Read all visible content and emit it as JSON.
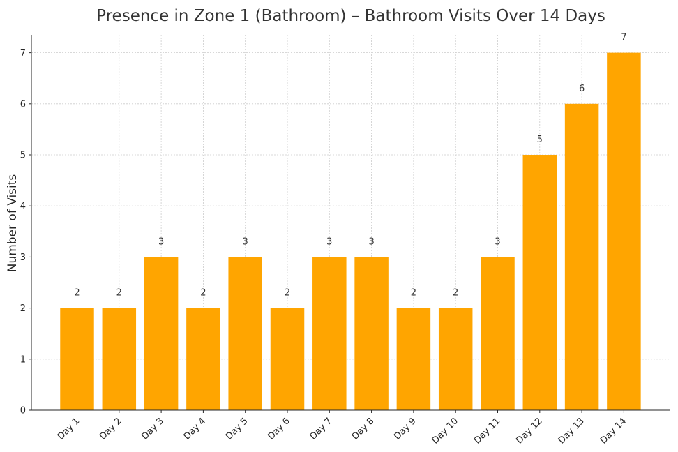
{
  "chart_data": {
    "type": "bar",
    "title": "Presence in Zone 1 (Bathroom) – Bathroom Visits Over 14 Days",
    "xlabel": "",
    "ylabel": "Number of Visits",
    "categories": [
      "Day 1",
      "Day 2",
      "Day 3",
      "Day 4",
      "Day 5",
      "Day 6",
      "Day 7",
      "Day 8",
      "Day 9",
      "Day 10",
      "Day 11",
      "Day 12",
      "Day 13",
      "Day 14"
    ],
    "values": [
      2,
      2,
      3,
      2,
      3,
      2,
      3,
      3,
      2,
      2,
      3,
      5,
      6,
      7
    ],
    "data_labels": [
      "2",
      "2",
      "3",
      "2",
      "3",
      "2",
      "3",
      "3",
      "2",
      "2",
      "3",
      "5",
      "6",
      "7"
    ],
    "y_ticks": [
      "0",
      "1",
      "2",
      "3",
      "4",
      "5",
      "6",
      "7"
    ],
    "ylim": [
      0,
      7.35
    ],
    "grid": true,
    "bar_color": "#FFA500"
  }
}
